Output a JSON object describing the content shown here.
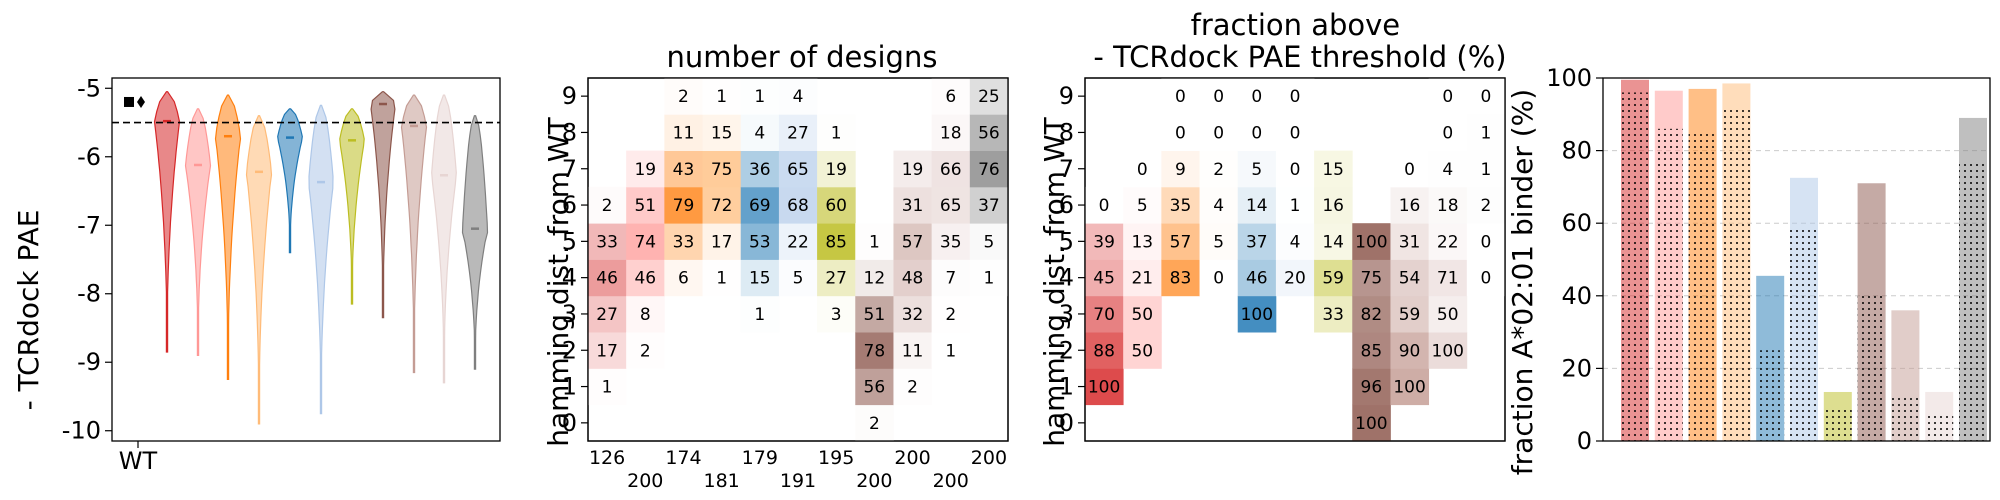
{
  "palette": [
    "#d62728",
    "#ff9896",
    "#ff7f0e",
    "#ffbb78",
    "#1f77b4",
    "#aec7e8",
    "#bcbd22",
    "#8c564b",
    "#c49c94",
    "#e7d5d3",
    "#7f7f7f"
  ],
  "chart_data": [
    {
      "type": "violin",
      "ylabel": "- TCRdock PAE",
      "ylim": [
        -10.15,
        -4.85
      ],
      "yticks": [
        "-5",
        "-6",
        "-7",
        "-8",
        "-9",
        "-10"
      ],
      "ytick_values": [
        -5,
        -6,
        -7,
        -8,
        -9,
        -10
      ],
      "xtick_label": "WT",
      "wt_value": -5.2,
      "threshold": -5.5,
      "series": [
        {
          "median": -5.48,
          "min": -8.85,
          "max": -5.05
        },
        {
          "median": -6.12,
          "min": -8.9,
          "max": -5.3
        },
        {
          "median": -5.7,
          "min": -9.25,
          "max": -5.1
        },
        {
          "median": -6.22,
          "min": -9.9,
          "max": -5.4
        },
        {
          "median": -5.72,
          "min": -7.4,
          "max": -5.3
        },
        {
          "median": -6.37,
          "min": -9.75,
          "max": -5.25
        },
        {
          "median": -5.76,
          "min": -8.15,
          "max": -5.3
        },
        {
          "median": -5.23,
          "min": -8.35,
          "max": -5.05
        },
        {
          "median": -5.55,
          "min": -9.15,
          "max": -5.1
        },
        {
          "median": -6.27,
          "min": -9.3,
          "max": -5.1
        },
        {
          "median": -7.05,
          "min": -9.1,
          "max": -5.4
        }
      ]
    },
    {
      "type": "heatmap",
      "title": "number of designs",
      "ylabel": "hamming dist. from WT",
      "yticks": [
        "0",
        "1",
        "2",
        "3",
        "4",
        "5",
        "6",
        "7",
        "8",
        "9"
      ],
      "column_totals": [
        "126",
        "200",
        "174",
        "181",
        "179",
        "191",
        "195",
        "200",
        "200",
        "200",
        "200"
      ],
      "cells": [
        [
          "",
          "1",
          "17",
          "27",
          "46",
          "33",
          "2",
          "",
          "",
          ""
        ],
        [
          "",
          "",
          "2",
          "8",
          "46",
          "74",
          "51",
          "19",
          "",
          ""
        ],
        [
          "",
          "",
          "",
          "",
          "6",
          "33",
          "79",
          "43",
          "11",
          "2"
        ],
        [
          "",
          "",
          "",
          "",
          "1",
          "17",
          "72",
          "75",
          "15",
          "1"
        ],
        [
          "",
          "",
          "",
          "1",
          "15",
          "53",
          "69",
          "36",
          "4",
          "1"
        ],
        [
          "",
          "",
          "",
          "",
          "5",
          "22",
          "68",
          "65",
          "27",
          "4"
        ],
        [
          "",
          "",
          "",
          "3",
          "27",
          "85",
          "60",
          "19",
          "1",
          ""
        ],
        [
          "2",
          "56",
          "78",
          "51",
          "12",
          "1",
          "",
          "",
          "",
          ""
        ],
        [
          "",
          "2",
          "11",
          "32",
          "48",
          "57",
          "31",
          "19",
          "",
          ""
        ],
        [
          "",
          "",
          "1",
          "2",
          "7",
          "35",
          "65",
          "66",
          "18",
          "6"
        ],
        [
          "",
          "",
          "",
          "",
          "1",
          "5",
          "37",
          "76",
          "56",
          "25"
        ]
      ]
    },
    {
      "type": "heatmap",
      "title": "fraction above\n- TCRdock PAE threshold (%)",
      "ylabel": "hamming dist. from WT",
      "yticks": [
        "0",
        "1",
        "2",
        "3",
        "4",
        "5",
        "6",
        "7",
        "8",
        "9"
      ],
      "cells": [
        [
          "",
          "100",
          "88",
          "70",
          "45",
          "39",
          "0",
          "",
          "",
          ""
        ],
        [
          "",
          "",
          "50",
          "50",
          "21",
          "13",
          "5",
          "0",
          "",
          ""
        ],
        [
          "",
          "",
          "",
          "",
          "83",
          "57",
          "35",
          "9",
          "0",
          "0"
        ],
        [
          "",
          "",
          "",
          "",
          "0",
          "5",
          "4",
          "2",
          "0",
          "0"
        ],
        [
          "",
          "",
          "",
          "100",
          "46",
          "37",
          "14",
          "5",
          "0",
          "0"
        ],
        [
          "",
          "",
          "",
          "",
          "20",
          "4",
          "1",
          "0",
          "0",
          "0"
        ],
        [
          "",
          "",
          "",
          "33",
          "59",
          "14",
          "16",
          "15",
          "",
          ""
        ],
        [
          "100",
          "96",
          "85",
          "82",
          "75",
          "100",
          "",
          "",
          "",
          ""
        ],
        [
          "",
          "100",
          "90",
          "59",
          "54",
          "31",
          "16",
          "0",
          "",
          ""
        ],
        [
          "",
          "",
          "100",
          "50",
          "71",
          "22",
          "18",
          "4",
          "0",
          "0"
        ],
        [
          "",
          "",
          "",
          "",
          "0",
          "0",
          "2",
          "1",
          "1",
          "0"
        ]
      ]
    },
    {
      "type": "bar",
      "ylabel": "fraction A*02:01 binder (%)",
      "ylim": [
        0,
        100
      ],
      "yticks": [
        "0",
        "20",
        "40",
        "60",
        "80",
        "100"
      ],
      "ytick_values": [
        0,
        20,
        40,
        60,
        80,
        100
      ],
      "grid": true,
      "series": [
        {
          "values": [
            99.5,
            96.5,
            97,
            98.5,
            45.5,
            72.5,
            13.5,
            71,
            36,
            13.5,
            89
          ]
        },
        {
          "values": [
            96,
            86,
            85,
            92,
            25,
            59,
            9,
            40,
            12,
            7,
            77
          ]
        }
      ]
    }
  ]
}
